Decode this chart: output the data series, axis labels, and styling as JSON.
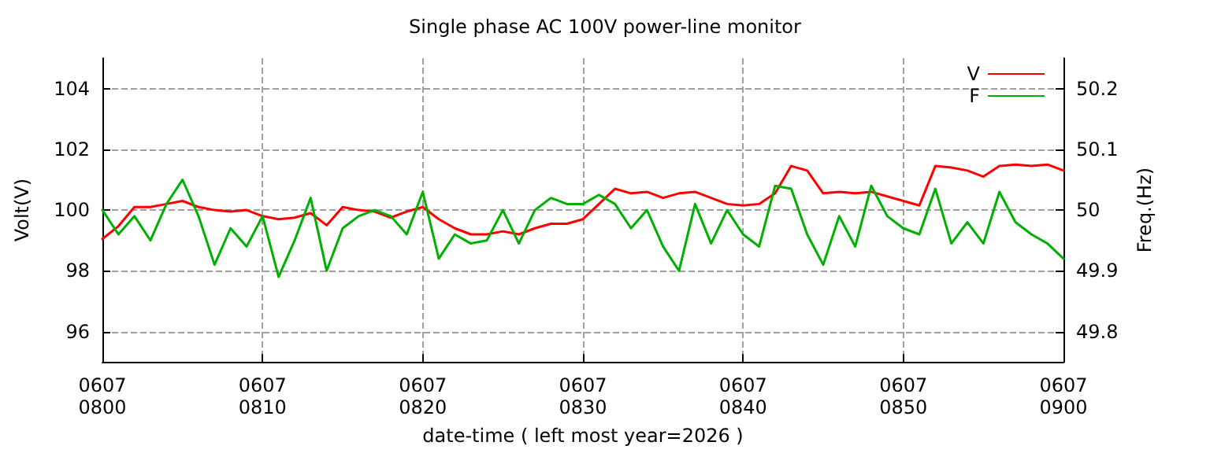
{
  "chart_data": {
    "type": "line",
    "title": "Single phase AC 100V power-line monitor",
    "xlabel": "date-time ( left most year=2026 )",
    "ylabel": "Volt(V)",
    "y2label": "Freq.(Hz)",
    "x": [
      "2026-06-07T08:00",
      "2026-06-07T08:01",
      "2026-06-07T08:02",
      "2026-06-07T08:03",
      "2026-06-07T08:04",
      "2026-06-07T08:05",
      "2026-06-07T08:06",
      "2026-06-07T08:07",
      "2026-06-07T08:08",
      "2026-06-07T08:09",
      "2026-06-07T08:10",
      "2026-06-07T08:11",
      "2026-06-07T08:12",
      "2026-06-07T08:13",
      "2026-06-07T08:14",
      "2026-06-07T08:15",
      "2026-06-07T08:16",
      "2026-06-07T08:17",
      "2026-06-07T08:18",
      "2026-06-07T08:19",
      "2026-06-07T08:20",
      "2026-06-07T08:21",
      "2026-06-07T08:22",
      "2026-06-07T08:23",
      "2026-06-07T08:24",
      "2026-06-07T08:25",
      "2026-06-07T08:26",
      "2026-06-07T08:27",
      "2026-06-07T08:28",
      "2026-06-07T08:29",
      "2026-06-07T08:30",
      "2026-06-07T08:31",
      "2026-06-07T08:32",
      "2026-06-07T08:33",
      "2026-06-07T08:34",
      "2026-06-07T08:35",
      "2026-06-07T08:36",
      "2026-06-07T08:37",
      "2026-06-07T08:38",
      "2026-06-07T08:39",
      "2026-06-07T08:40",
      "2026-06-07T08:41",
      "2026-06-07T08:42",
      "2026-06-07T08:43",
      "2026-06-07T08:44",
      "2026-06-07T08:45",
      "2026-06-07T08:46",
      "2026-06-07T08:47",
      "2026-06-07T08:48",
      "2026-06-07T08:49",
      "2026-06-07T08:50",
      "2026-06-07T08:51",
      "2026-06-07T08:52",
      "2026-06-07T08:53",
      "2026-06-07T08:54",
      "2026-06-07T08:55",
      "2026-06-07T08:56",
      "2026-06-07T08:57",
      "2026-06-07T08:58",
      "2026-06-07T08:59",
      "2026-06-07T09:00"
    ],
    "xlim": [
      "2026-06-07T08:00",
      "2026-06-07T09:00"
    ],
    "xticks": [
      {
        "value": "2026-06-07T08:00",
        "label": "0607\n0800"
      },
      {
        "value": "2026-06-07T08:10",
        "label": "0607\n0810"
      },
      {
        "value": "2026-06-07T08:20",
        "label": "0607\n0820"
      },
      {
        "value": "2026-06-07T08:30",
        "label": "0607\n0830"
      },
      {
        "value": "2026-06-07T08:40",
        "label": "0607\n0840"
      },
      {
        "value": "2026-06-07T08:50",
        "label": "0607\n0850"
      },
      {
        "value": "2026-06-07T09:00",
        "label": "0607\n0900"
      }
    ],
    "ylim": [
      95,
      105
    ],
    "yticks": [
      96,
      98,
      100,
      102,
      104
    ],
    "y2lim": [
      49.75,
      50.25
    ],
    "y2ticks": [
      49.8,
      49.9,
      50,
      50.1,
      50.2
    ],
    "grid": true,
    "legend": "top right",
    "line_style": "solid",
    "marker": "none",
    "series": [
      {
        "name": "V",
        "color": "#ff0000",
        "values": [
          99.05,
          99.47,
          100.1,
          100.1,
          100.2,
          100.3,
          100.1,
          100.0,
          99.95,
          100.0,
          99.8,
          99.7,
          99.75,
          99.9,
          99.5,
          100.1,
          100.0,
          99.95,
          99.75,
          99.95,
          100.1,
          99.7,
          99.4,
          99.2,
          99.2,
          99.3,
          99.2,
          99.4,
          99.55,
          99.55,
          99.7,
          100.2,
          100.7,
          100.55,
          100.6,
          100.4,
          100.55,
          100.6,
          100.4,
          100.2,
          100.15,
          100.2,
          100.55,
          101.45,
          101.3,
          100.55,
          100.6,
          100.55,
          100.6,
          100.45,
          100.3,
          100.15,
          101.45,
          101.4,
          101.3,
          101.1,
          101.45,
          101.5,
          101.45,
          101.5,
          101.3
        ]
      },
      {
        "name": "F",
        "color": "#00b000",
        "axis": "y2",
        "values": [
          50.0,
          49.96,
          49.99,
          49.95,
          50.01,
          50.05,
          49.99,
          49.91,
          49.97,
          49.94,
          49.99,
          49.89,
          49.95,
          50.02,
          49.9,
          49.97,
          49.99,
          50.0,
          49.99,
          49.96,
          50.03,
          49.92,
          49.96,
          49.945,
          49.95,
          50.0,
          49.945,
          50.0,
          50.02,
          50.01,
          50.01,
          50.025,
          50.01,
          49.97,
          50.0,
          49.94,
          49.9,
          50.01,
          49.945,
          50.0,
          49.96,
          49.94,
          50.04,
          50.035,
          49.96,
          49.91,
          49.99,
          49.94,
          50.04,
          49.99,
          49.97,
          49.96,
          50.035,
          49.945,
          49.98,
          49.945,
          50.03,
          49.98,
          49.96,
          49.945,
          49.92
        ]
      }
    ]
  }
}
